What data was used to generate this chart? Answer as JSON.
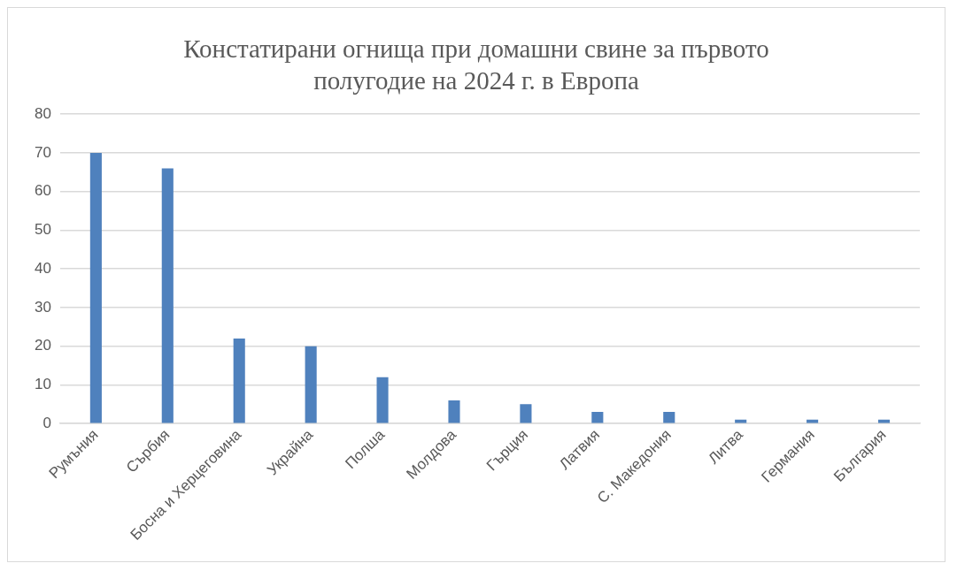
{
  "chart_data": {
    "type": "bar",
    "title": "Констатирани огнища при домашни свине за първото полугодие на 2024 г. в Европа",
    "categories": [
      "Румъния",
      "Сърбия",
      "Босна и Херцеговина",
      "Украйна",
      "Полша",
      "Молдова",
      "Гърция",
      "Латвия",
      "С. Македония",
      "Литва",
      "Германия",
      "България"
    ],
    "values": [
      70,
      66,
      22,
      20,
      12,
      6,
      5,
      3,
      3,
      1,
      1,
      1
    ],
    "color": "#4f81bd",
    "ylim": [
      0,
      80
    ],
    "yticks": [
      0,
      10,
      20,
      30,
      40,
      50,
      60,
      70,
      80
    ],
    "grid": "y",
    "legend": false
  }
}
